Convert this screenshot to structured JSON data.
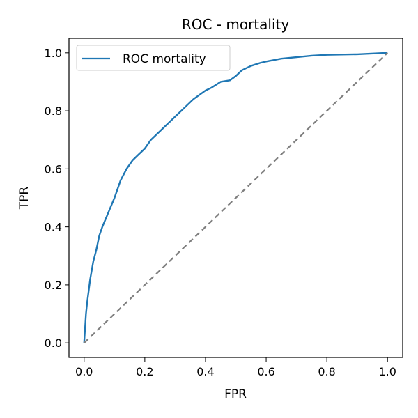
{
  "chart_data": {
    "type": "line",
    "title": "ROC - mortality",
    "xlabel": "FPR",
    "ylabel": "TPR",
    "xlim": [
      -0.05,
      1.05
    ],
    "ylim": [
      -0.05,
      1.05
    ],
    "xticks": [
      0.0,
      0.2,
      0.4,
      0.6,
      0.8,
      1.0
    ],
    "yticks": [
      0.0,
      0.2,
      0.4,
      0.6,
      0.8,
      1.0
    ],
    "xtick_labels": [
      "0.0",
      "0.2",
      "0.4",
      "0.6",
      "0.8",
      "1.0"
    ],
    "ytick_labels": [
      "0.0",
      "0.2",
      "0.4",
      "0.6",
      "0.8",
      "1.0"
    ],
    "grid": false,
    "legend": {
      "position": "top-left",
      "entries": [
        "ROC mortality"
      ]
    },
    "series": [
      {
        "name": "ROC mortality",
        "color": "#1f77b4",
        "style": "solid",
        "x": [
          0.0,
          0.003,
          0.006,
          0.01,
          0.015,
          0.02,
          0.03,
          0.04,
          0.05,
          0.06,
          0.08,
          0.1,
          0.12,
          0.14,
          0.16,
          0.18,
          0.2,
          0.22,
          0.25,
          0.28,
          0.3,
          0.33,
          0.36,
          0.4,
          0.42,
          0.45,
          0.48,
          0.5,
          0.52,
          0.55,
          0.58,
          0.6,
          0.65,
          0.7,
          0.75,
          0.8,
          0.9,
          1.0
        ],
        "y": [
          0.0,
          0.05,
          0.1,
          0.14,
          0.18,
          0.22,
          0.28,
          0.32,
          0.37,
          0.4,
          0.45,
          0.5,
          0.56,
          0.6,
          0.63,
          0.65,
          0.67,
          0.7,
          0.73,
          0.76,
          0.78,
          0.81,
          0.84,
          0.87,
          0.88,
          0.9,
          0.905,
          0.92,
          0.94,
          0.955,
          0.965,
          0.97,
          0.98,
          0.985,
          0.99,
          0.993,
          0.995,
          1.0
        ]
      },
      {
        "name": "",
        "color": "#7f7f7f",
        "style": "dashed",
        "x": [
          0.0,
          1.0
        ],
        "y": [
          0.0,
          1.0
        ]
      }
    ]
  }
}
